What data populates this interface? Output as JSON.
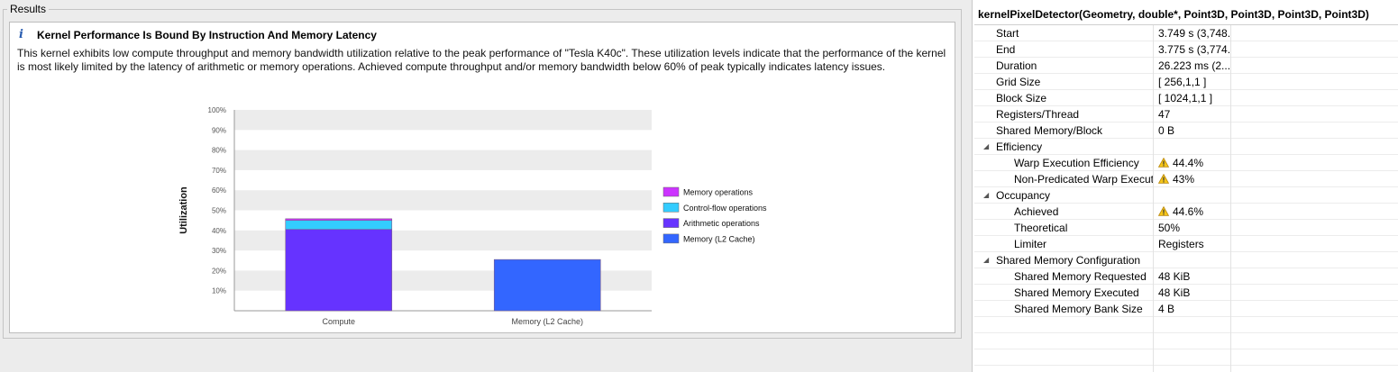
{
  "results": {
    "group_title": "Results",
    "card_title": "Kernel Performance Is Bound By Instruction And Memory Latency",
    "info_icon": "i",
    "description": "This kernel exhibits low compute throughput and memory bandwidth utilization relative to the peak performance of \"Tesla K40c\". These utilization levels indicate that the performance of the kernel is most likely limited by the latency of arithmetic or memory operations. Achieved compute throughput and/or memory bandwidth below 60% of peak typically indicates latency issues."
  },
  "chart_data": {
    "type": "bar",
    "stacked": true,
    "categories": [
      "Compute",
      "Memory (L2 Cache)"
    ],
    "series": [
      {
        "name": "Arithmetic operations",
        "values": [
          40.5,
          0
        ],
        "color": "#6633ff"
      },
      {
        "name": "Control-flow operations",
        "values": [
          4.5,
          0
        ],
        "color": "#33ccff"
      },
      {
        "name": "Memory operations",
        "values": [
          0.8,
          0
        ],
        "color": "#cc33ff"
      },
      {
        "name": "Memory (L2 Cache)",
        "values": [
          0,
          25.5
        ],
        "color": "#3366ff"
      }
    ],
    "legend_order": [
      "Memory operations",
      "Control-flow operations",
      "Arithmetic operations",
      "Memory (L2 Cache)"
    ],
    "ylabel": "Utilization",
    "xlabel": "",
    "ylim": [
      0,
      100
    ],
    "yticks": [
      "10%",
      "20%",
      "30%",
      "40%",
      "50%",
      "60%",
      "70%",
      "80%",
      "90%",
      "100%"
    ],
    "legend_position": "right"
  },
  "details": {
    "title": "kernelPixelDetector(Geometry, double*, Point3D, Point3D, Point3D, Point3D)",
    "rows": [
      {
        "label": "Start",
        "value": "3.749 s (3,748...",
        "level": 1,
        "warn": false,
        "section": false
      },
      {
        "label": "End",
        "value": "3.775 s (3,774...",
        "level": 1,
        "warn": false,
        "section": false
      },
      {
        "label": "Duration",
        "value": "26.223 ms (2...",
        "level": 1,
        "warn": false,
        "section": false
      },
      {
        "label": "Grid Size",
        "value": "[ 256,1,1 ]",
        "level": 1,
        "warn": false,
        "section": false
      },
      {
        "label": "Block Size",
        "value": "[ 1024,1,1 ]",
        "level": 1,
        "warn": false,
        "section": false
      },
      {
        "label": "Registers/Thread",
        "value": "47",
        "level": 1,
        "warn": false,
        "section": false
      },
      {
        "label": "Shared  Memory/Block",
        "value": "0 B",
        "level": 1,
        "warn": false,
        "section": false
      },
      {
        "label": "Efficiency",
        "value": "",
        "level": 1,
        "warn": false,
        "section": true
      },
      {
        "label": "Warp Execution Efficiency",
        "value": "44.4%",
        "level": 2,
        "warn": true,
        "section": false
      },
      {
        "label": "Non-Predicated Warp Executi",
        "value": "43%",
        "level": 2,
        "warn": true,
        "section": false
      },
      {
        "label": "Occupancy",
        "value": "",
        "level": 1,
        "warn": false,
        "section": true
      },
      {
        "label": "Achieved",
        "value": "44.6%",
        "level": 2,
        "warn": true,
        "section": false
      },
      {
        "label": "Theoretical",
        "value": "50%",
        "level": 2,
        "warn": false,
        "section": false
      },
      {
        "label": "Limiter",
        "value": "Registers",
        "level": 2,
        "warn": false,
        "section": false
      },
      {
        "label": "Shared Memory Configuration",
        "value": "",
        "level": 1,
        "warn": false,
        "section": true
      },
      {
        "label": "Shared Memory Requested",
        "value": "48 KiB",
        "level": 2,
        "warn": false,
        "section": false
      },
      {
        "label": "Shared Memory Executed",
        "value": "48 KiB",
        "level": 2,
        "warn": false,
        "section": false
      },
      {
        "label": "Shared Memory Bank Size",
        "value": "4 B",
        "level": 2,
        "warn": false,
        "section": false
      },
      {
        "label": "",
        "value": "",
        "level": 1,
        "warn": false,
        "section": false
      },
      {
        "label": "",
        "value": "",
        "level": 1,
        "warn": false,
        "section": false
      },
      {
        "label": "",
        "value": "",
        "level": 1,
        "warn": false,
        "section": false
      },
      {
        "label": "",
        "value": "",
        "level": 1,
        "warn": false,
        "section": false
      }
    ],
    "expander_icon": "expanded-triangle-icon",
    "warning_icon": "warning-icon"
  }
}
